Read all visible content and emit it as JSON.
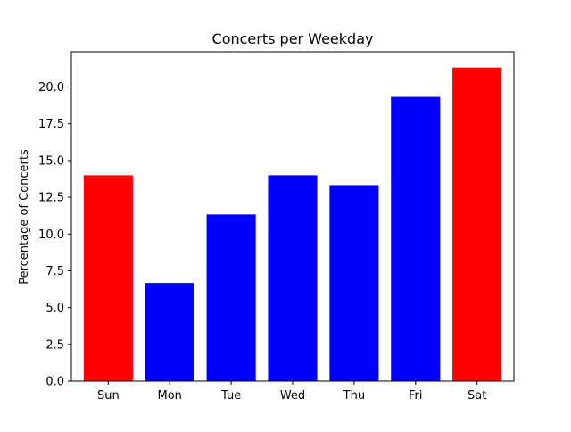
{
  "chart_data": {
    "type": "bar",
    "title": "Concerts per Weekday",
    "xlabel": "",
    "ylabel": "Percentage of Concerts",
    "categories": [
      "Sun",
      "Mon",
      "Tue",
      "Wed",
      "Thu",
      "Fri",
      "Sat"
    ],
    "values": [
      14.0,
      6.67,
      11.33,
      14.0,
      13.33,
      19.33,
      21.33
    ],
    "bar_colors": [
      "#ff0000",
      "#0000ff",
      "#0000ff",
      "#0000ff",
      "#0000ff",
      "#0000ff",
      "#ff0000"
    ],
    "ylim": [
      0,
      22.4
    ],
    "yticks": [
      0.0,
      2.5,
      5.0,
      7.5,
      10.0,
      12.5,
      15.0,
      17.5,
      20.0
    ],
    "ytick_labels": [
      "0.0",
      "2.5",
      "5.0",
      "7.5",
      "10.0",
      "12.5",
      "15.0",
      "17.5",
      "20.0"
    ],
    "grid": false,
    "legend": "none"
  }
}
